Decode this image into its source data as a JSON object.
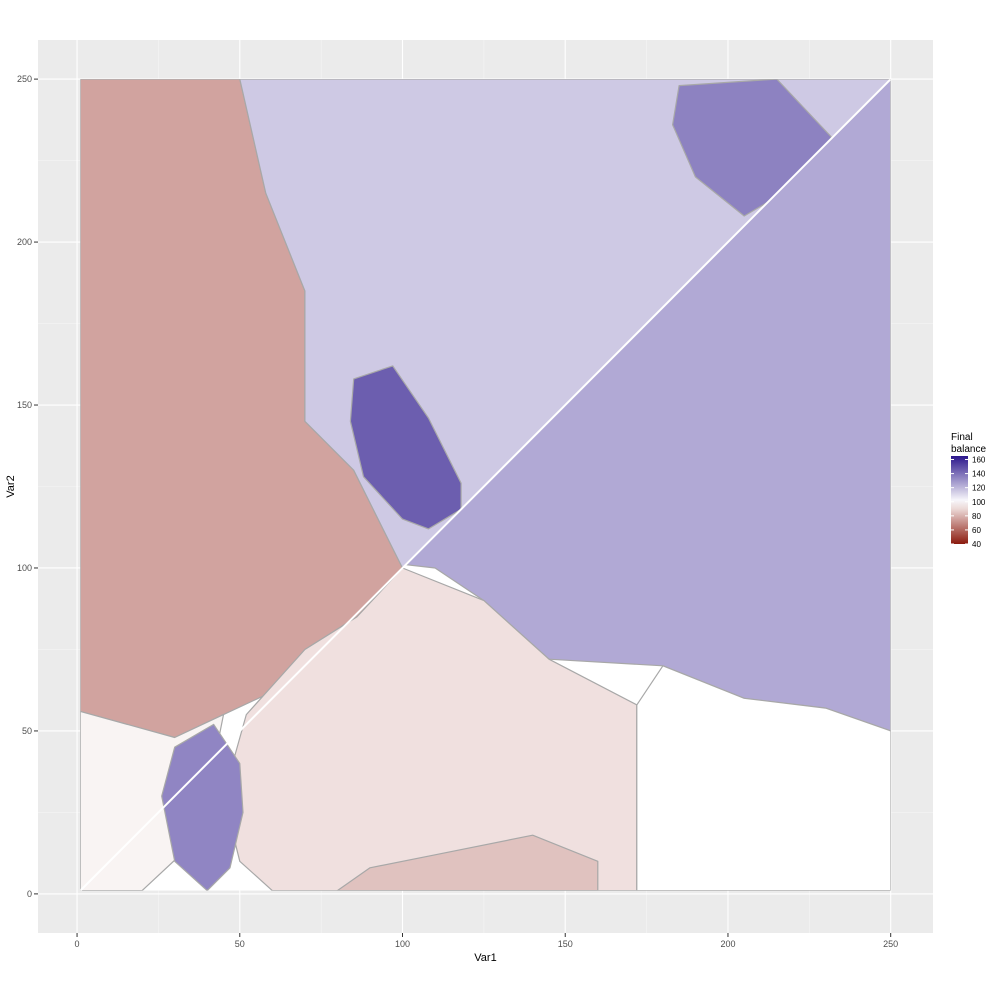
{
  "chart_data": {
    "type": "heatmap",
    "xlabel": "Var1",
    "ylabel": "Var2",
    "xlim": [
      -12,
      263
    ],
    "ylim": [
      -12,
      262
    ],
    "x_ticks": [
      0,
      50,
      100,
      150,
      200,
      250
    ],
    "y_ticks": [
      0,
      50,
      100,
      150,
      200,
      250
    ],
    "grid": true,
    "legend": {
      "title_lines": [
        "Final",
        "balance"
      ],
      "position": "right",
      "ticks": [
        40,
        60,
        80,
        100,
        120,
        140,
        160
      ],
      "range": [
        40,
        165
      ],
      "colors": {
        "low": "#8b1a0e",
        "mid": "#ffffff",
        "high": "#2b168c"
      }
    },
    "mid_value": 100,
    "regions": [
      {
        "name": "upper-left-red",
        "value": 76,
        "polygon": [
          [
            1,
            1
          ],
          [
            1,
            250
          ],
          [
            50,
            250
          ],
          [
            58,
            215
          ],
          [
            70,
            185
          ],
          [
            70,
            145
          ],
          [
            85,
            130
          ],
          [
            95,
            110
          ],
          [
            100,
            100
          ],
          [
            86,
            85
          ],
          [
            70,
            75
          ],
          [
            60,
            62
          ],
          [
            45,
            55
          ],
          [
            30,
            48
          ],
          [
            1,
            56
          ]
        ]
      },
      {
        "name": "upper-middle-light-purple",
        "value": 115,
        "polygon": [
          [
            50,
            250
          ],
          [
            250,
            250
          ],
          [
            100,
            100
          ],
          [
            95,
            110
          ],
          [
            85,
            130
          ],
          [
            70,
            145
          ],
          [
            70,
            185
          ],
          [
            58,
            215
          ]
        ]
      },
      {
        "name": "upper-right-purple-patch",
        "value": 135,
        "polygon": [
          [
            185,
            248
          ],
          [
            215,
            250
          ],
          [
            232,
            232
          ],
          [
            222,
            218
          ],
          [
            205,
            208
          ],
          [
            190,
            220
          ],
          [
            183,
            236
          ]
        ]
      },
      {
        "name": "central-dark-purple-patch",
        "value": 145,
        "polygon": [
          [
            85,
            158
          ],
          [
            97,
            162
          ],
          [
            108,
            146
          ],
          [
            118,
            126
          ],
          [
            118,
            118
          ],
          [
            108,
            112
          ],
          [
            100,
            115
          ],
          [
            88,
            128
          ],
          [
            84,
            145
          ]
        ]
      },
      {
        "name": "right-triangle-purple",
        "value": 124,
        "polygon": [
          [
            101,
            101
          ],
          [
            250,
            250
          ],
          [
            250,
            50
          ],
          [
            230,
            57
          ],
          [
            205,
            60
          ],
          [
            180,
            70
          ],
          [
            145,
            72
          ],
          [
            125,
            90
          ],
          [
            110,
            100
          ]
        ]
      },
      {
        "name": "lower-pale-pink",
        "value": 92,
        "polygon": [
          [
            100,
            100
          ],
          [
            125,
            90
          ],
          [
            145,
            72
          ],
          [
            172,
            58
          ],
          [
            172,
            1
          ],
          [
            60,
            1
          ],
          [
            50,
            10
          ],
          [
            45,
            30
          ],
          [
            52,
            55
          ],
          [
            70,
            75
          ],
          [
            86,
            85
          ]
        ]
      },
      {
        "name": "lower-right-white",
        "value": 100,
        "polygon": [
          [
            172,
            58
          ],
          [
            180,
            70
          ],
          [
            205,
            60
          ],
          [
            230,
            57
          ],
          [
            250,
            50
          ],
          [
            250,
            1
          ],
          [
            172,
            1
          ]
        ]
      },
      {
        "name": "lower-left-mixed",
        "value": 97,
        "polygon": [
          [
            1,
            1
          ],
          [
            1,
            56
          ],
          [
            30,
            48
          ],
          [
            45,
            55
          ],
          [
            40,
            30
          ],
          [
            35,
            15
          ],
          [
            20,
            1
          ]
        ]
      },
      {
        "name": "lower-left-purple-patch",
        "value": 134,
        "polygon": [
          [
            30,
            45
          ],
          [
            42,
            52
          ],
          [
            50,
            40
          ],
          [
            51,
            25
          ],
          [
            47,
            8
          ],
          [
            40,
            1
          ],
          [
            30,
            10
          ],
          [
            26,
            30
          ]
        ]
      },
      {
        "name": "bottom-strip-red",
        "value": 84,
        "polygon": [
          [
            80,
            1
          ],
          [
            160,
            1
          ],
          [
            160,
            10
          ],
          [
            140,
            18
          ],
          [
            110,
            12
          ],
          [
            90,
            8
          ]
        ]
      }
    ]
  }
}
